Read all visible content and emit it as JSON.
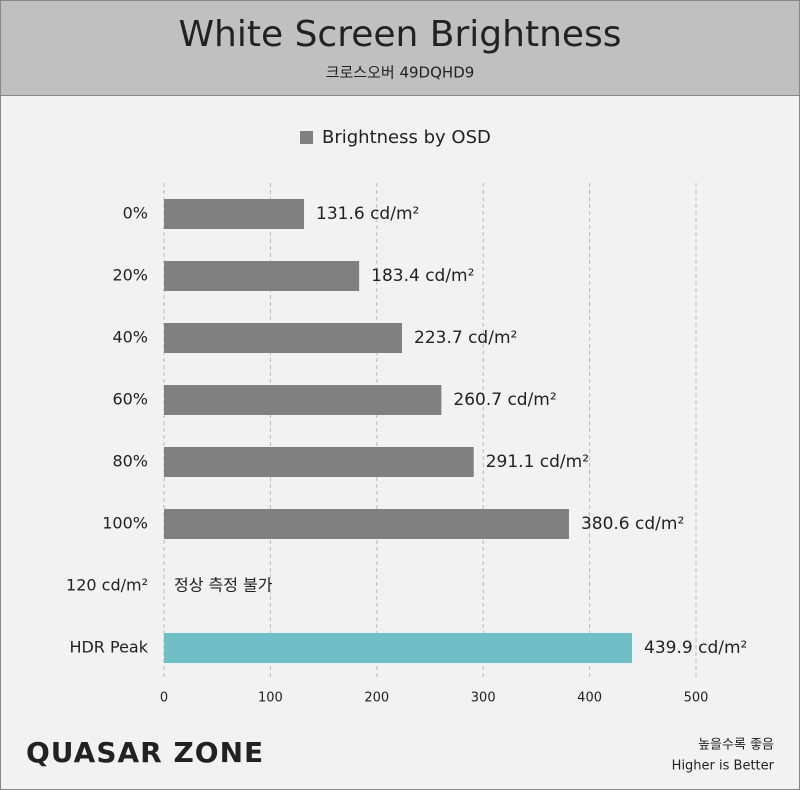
{
  "chart_data": {
    "type": "hbar",
    "title": "White Screen Brightness",
    "subtitle": "크로스오버 49DQHD9",
    "categories": [
      "0%",
      "20%",
      "40%",
      "60%",
      "80%",
      "100%",
      "120 cd/m²",
      "HDR Peak"
    ],
    "series": [
      {
        "name": "Brightness by OSD",
        "color": "#808080",
        "values": [
          131.6,
          183.4,
          223.7,
          260.7,
          291.1,
          380.6,
          null,
          439.9
        ],
        "value_labels": [
          "131.6 cd/m²",
          "183.4 cd/m²",
          "223.7 cd/m²",
          "260.7 cd/m²",
          "291.1 cd/m²",
          "380.6 cd/m²",
          "정상 측정 불가",
          "439.9 cd/m²"
        ],
        "colors": [
          "#808080",
          "#808080",
          "#808080",
          "#808080",
          "#808080",
          "#808080",
          "#808080",
          "#70bec6"
        ]
      }
    ],
    "xlim": [
      0,
      500
    ],
    "xticks": [
      0,
      100,
      200,
      300,
      400,
      500
    ],
    "grid": true,
    "legend": "top",
    "logo": "QUASAR ZONE",
    "note": [
      "높을수록 좋음",
      "Higher is Better"
    ]
  }
}
